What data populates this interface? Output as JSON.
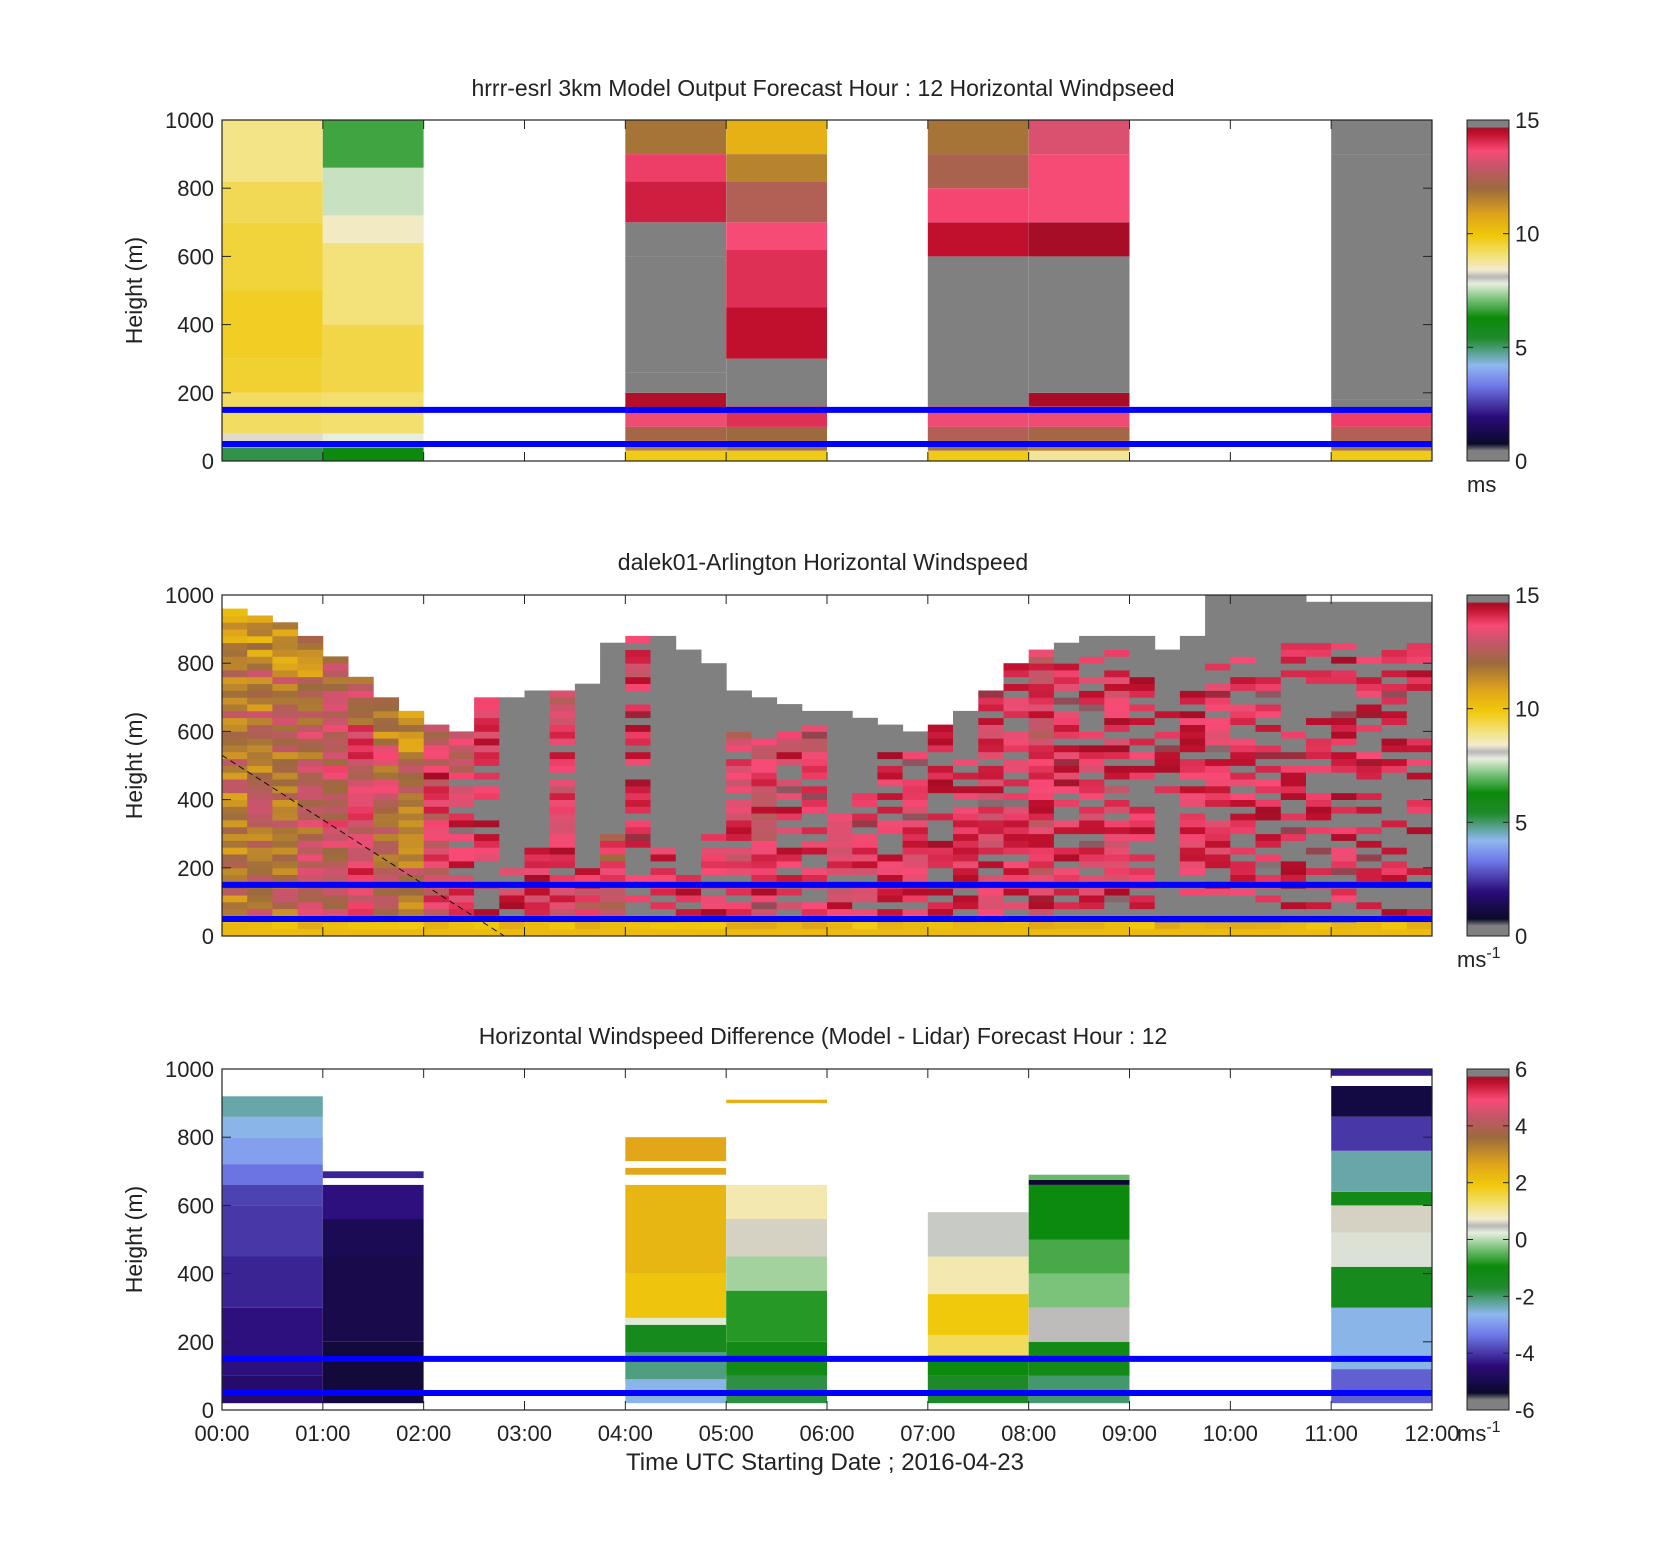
{
  "panels": [
    {
      "id": "model",
      "title": "hrrr-esrl 3km Model Output   Forecast Hour : 12 Horizontal Windpseed",
      "ylabel": "Height (m)",
      "colorbar": {
        "ticks": [
          "15",
          "10",
          "5",
          "0"
        ],
        "unit": "ms",
        "unit_sup": ""
      }
    },
    {
      "id": "lidar",
      "title": "dalek01-Arlington  Horizontal Windspeed",
      "ylabel": "Height (m)",
      "colorbar": {
        "ticks": [
          "15",
          "10",
          "5",
          "0"
        ],
        "unit": "ms",
        "unit_sup": "-1"
      }
    },
    {
      "id": "diff",
      "title": "Horizontal Windspeed Difference (Model - Lidar) Forecast Hour : 12",
      "ylabel": "Height (m)",
      "colorbar": {
        "ticks": [
          "6",
          "4",
          "2",
          "0",
          "-2",
          "-4",
          "-6"
        ],
        "unit": "ms",
        "unit_sup": "-1"
      }
    }
  ],
  "xaxis": {
    "label": "Time UTC  Starting Date ; 2016-04-23",
    "ticks": [
      "00:00",
      "01:00",
      "02:00",
      "03:00",
      "04:00",
      "05:00",
      "06:00",
      "07:00",
      "08:00",
      "09:00",
      "10:00",
      "11:00",
      "12:00"
    ]
  },
  "yaxis_ticks": [
    "1000",
    "800",
    "600",
    "400",
    "200",
    "0"
  ],
  "chart_data": [
    {
      "type": "heatmap",
      "title": "hrrr-esrl 3km Model Output   Forecast Hour : 12 Horizontal Windpseed",
      "xlabel": "",
      "ylabel": "Height (m)",
      "xlim_hours": [
        0,
        12
      ],
      "ylim": [
        0,
        1000
      ],
      "colorbar": {
        "min": 0,
        "max": 15,
        "ticks": [
          0,
          5,
          10,
          15
        ],
        "unit": "ms"
      },
      "reference_lines_m": [
        150,
        50
      ],
      "reference_line_color": "#0000ff",
      "columns": [
        {
          "start_hour": 0,
          "end_hour": 1,
          "levels": [
            [
              0,
              40,
              5.2
            ],
            [
              40,
              80,
              8.3
            ],
            [
              80,
              200,
              9.2
            ],
            [
              200,
              300,
              9.6
            ],
            [
              300,
              500,
              9.7
            ],
            [
              500,
              700,
              9.5
            ],
            [
              700,
              820,
              9.3
            ],
            [
              820,
              1000,
              8.9
            ]
          ]
        },
        {
          "start_hour": 1,
          "end_hour": 2,
          "levels": [
            [
              0,
              40,
              6.2
            ],
            [
              40,
              80,
              7.8
            ],
            [
              80,
              200,
              9.1
            ],
            [
              200,
              400,
              9.4
            ],
            [
              400,
              640,
              9.0
            ],
            [
              640,
              720,
              8.5
            ],
            [
              720,
              860,
              7.6
            ],
            [
              860,
              1000,
              6.7
            ]
          ]
        },
        {
          "start_hour": 4,
          "end_hour": 5,
          "levels": [
            [
              0,
              30,
              9.8
            ],
            [
              30,
              60,
              11.5
            ],
            [
              60,
              100,
              12.2
            ],
            [
              100,
              140,
              13.5
            ],
            [
              140,
              200,
              14.5
            ],
            [
              200,
              260,
              15.0
            ],
            [
              260,
              600,
              null
            ],
            [
              600,
              700,
              15.0
            ],
            [
              700,
              820,
              14.2
            ],
            [
              820,
              900,
              13.8
            ],
            [
              900,
              1000,
              11.8
            ]
          ]
        },
        {
          "start_hour": 5,
          "end_hour": 6,
          "levels": [
            [
              0,
              30,
              9.8
            ],
            [
              30,
              60,
              11.8
            ],
            [
              60,
              100,
              12.0
            ],
            [
              100,
              160,
              14.0
            ],
            [
              160,
              300,
              14.8
            ],
            [
              300,
              450,
              14.4
            ],
            [
              450,
              620,
              14.0
            ],
            [
              620,
              700,
              13.6
            ],
            [
              700,
              820,
              12.5
            ],
            [
              820,
              900,
              11.5
            ],
            [
              900,
              1000,
              10.5
            ]
          ]
        },
        {
          "start_hour": 7,
          "end_hour": 8,
          "levels": [
            [
              0,
              30,
              9.8
            ],
            [
              30,
              60,
              11.8
            ],
            [
              60,
              100,
              12.5
            ],
            [
              100,
              160,
              13.5
            ],
            [
              160,
              500,
              null
            ],
            [
              500,
              600,
              15.0
            ],
            [
              600,
              700,
              14.4
            ],
            [
              700,
              800,
              13.7
            ],
            [
              800,
              900,
              12.3
            ],
            [
              900,
              1000,
              11.8
            ]
          ]
        },
        {
          "start_hour": 8,
          "end_hour": 9,
          "levels": [
            [
              0,
              30,
              8.8
            ],
            [
              30,
              60,
              11.5
            ],
            [
              60,
              100,
              12.2
            ],
            [
              100,
              160,
              13.5
            ],
            [
              160,
              200,
              14.6
            ],
            [
              200,
              500,
              null
            ],
            [
              500,
              600,
              14.8
            ],
            [
              600,
              700,
              14.6
            ],
            [
              700,
              900,
              13.6
            ],
            [
              900,
              1000,
              13.2
            ]
          ]
        },
        {
          "start_hour": 11,
          "end_hour": 12,
          "levels": [
            [
              0,
              30,
              9.8
            ],
            [
              30,
              60,
              11.8
            ],
            [
              60,
              100,
              12.5
            ],
            [
              100,
              150,
              13.8
            ],
            [
              150,
              180,
              14.8
            ],
            [
              180,
              900,
              null
            ],
            [
              900,
              1000,
              14.8
            ]
          ]
        }
      ]
    },
    {
      "type": "heatmap",
      "title": "dalek01-Arlington  Horizontal Windspeed",
      "xlabel": "",
      "ylabel": "Height (m)",
      "xlim_hours": [
        0,
        12
      ],
      "ylim": [
        0,
        1000
      ],
      "colorbar": {
        "min": 0,
        "max": 15,
        "ticks": [
          0,
          5,
          10,
          15
        ],
        "unit": "ms-1"
      },
      "reference_lines_m": [
        150,
        50
      ],
      "reference_line_color": "#0000ff",
      "column_width_hours": 0.25,
      "column_tops_m": [
        960,
        940,
        920,
        880,
        820,
        760,
        700,
        660,
        620,
        600,
        690,
        700,
        710,
        720,
        740,
        860,
        880,
        870,
        830,
        800,
        720,
        700,
        680,
        660,
        650,
        640,
        620,
        600,
        620,
        660,
        720,
        800,
        830,
        860,
        880,
        880,
        870,
        840,
        870,
        1000,
        1000,
        990,
        990,
        980,
        980,
        980,
        980,
        980
      ],
      "column_values": [
        11.8,
        12.0,
        12.2,
        12.4,
        13.0,
        13.3,
        12.6,
        12.0,
        13.6,
        14.2,
        14.4,
        14.2,
        13.8,
        14.0,
        13.4,
        13.0,
        14.6,
        14.2,
        13.8,
        14.4,
        14.0,
        13.6,
        14.2,
        14.5,
        14.0,
        14.2,
        14.6,
        14.0,
        14.8,
        14.3,
        14.0,
        14.4,
        13.6,
        14.4,
        14.2,
        14.0,
        14.6,
        14.8,
        14.4,
        14.4,
        14.6,
        14.6,
        14.8,
        14.8,
        14.6,
        14.6,
        14.8,
        14.8
      ],
      "grey_region_above_m": [
        null,
        null,
        null,
        null,
        null,
        null,
        null,
        null,
        null,
        null,
        null,
        200,
        260,
        null,
        200,
        300,
        null,
        280,
        180,
        300,
        600,
        580,
        600,
        620,
        400,
        420,
        560,
        540,
        640,
        520,
        null,
        null,
        null,
        800,
        820,
        830,
        800,
        700,
        820,
        820,
        840,
        850,
        860,
        860,
        860,
        860,
        860,
        860
      ],
      "grey_region_below_m": [
        null,
        null,
        null,
        null,
        null,
        null,
        null,
        null,
        null,
        null,
        null,
        null,
        null,
        null,
        null,
        null,
        null,
        null,
        null,
        null,
        null,
        null,
        null,
        null,
        null,
        null,
        null,
        null,
        null,
        null,
        null,
        null,
        null,
        null,
        null,
        null,
        null,
        400,
        120,
        120,
        110,
        90,
        80,
        60,
        50,
        40,
        40,
        40
      ],
      "dashed_line": {
        "from": [
          0,
          530
        ],
        "to": [
          2.8,
          0
        ]
      }
    },
    {
      "type": "heatmap",
      "title": "Horizontal Windspeed Difference (Model - Lidar) Forecast Hour : 12",
      "xlabel": "Time UTC  Starting Date ; 2016-04-23",
      "ylabel": "Height (m)",
      "xlim_hours": [
        0,
        12
      ],
      "ylim": [
        0,
        1000
      ],
      "colorbar": {
        "min": -6,
        "max": 6,
        "ticks": [
          -6,
          -4,
          -2,
          0,
          2,
          4,
          6
        ],
        "unit": "ms-1"
      },
      "reference_lines_m": [
        150,
        50
      ],
      "reference_line_color": "#0000ff",
      "columns": [
        {
          "start_hour": 0,
          "end_hour": 1,
          "levels": [
            [
              20,
              100,
              -4.6
            ],
            [
              100,
              300,
              -4.4
            ],
            [
              300,
              450,
              -4.2
            ],
            [
              450,
              600,
              -4.0
            ],
            [
              600,
              660,
              -3.9
            ],
            [
              660,
              720,
              -3.4
            ],
            [
              720,
              800,
              -2.9
            ],
            [
              800,
              860,
              -2.6
            ],
            [
              860,
              920,
              -2.3
            ]
          ]
        },
        {
          "start_hour": 1,
          "end_hour": 2,
          "levels": [
            [
              20,
              200,
              -5.2
            ],
            [
              200,
              450,
              -5.0
            ],
            [
              450,
              560,
              -4.9
            ],
            [
              560,
              660,
              -4.4
            ],
            [
              680,
              700,
              -4.2
            ]
          ]
        },
        {
          "start_hour": 4,
          "end_hour": 5,
          "levels": [
            [
              20,
              90,
              -2.6
            ],
            [
              90,
              170,
              -2.1
            ],
            [
              170,
              250,
              -1.4
            ],
            [
              250,
              270,
              0.2
            ],
            [
              270,
              400,
              2.0
            ],
            [
              400,
              660,
              2.3
            ],
            [
              690,
              710,
              2.6
            ],
            [
              730,
              800,
              2.6
            ]
          ]
        },
        {
          "start_hour": 5,
          "end_hour": 6,
          "levels": [
            [
              20,
              100,
              -1.8
            ],
            [
              100,
              200,
              -1.2
            ],
            [
              200,
              350,
              -0.8
            ],
            [
              350,
              450,
              -0.1
            ],
            [
              450,
              560,
              0.6
            ],
            [
              560,
              660,
              0.9
            ],
            [
              900,
              910,
              2.4
            ]
          ]
        },
        {
          "start_hour": 7,
          "end_hour": 8,
          "levels": [
            [
              20,
              100,
              -1.6
            ],
            [
              100,
              160,
              -1.0
            ],
            [
              160,
              220,
              1.4
            ],
            [
              220,
              340,
              1.9
            ],
            [
              340,
              450,
              0.9
            ],
            [
              450,
              580,
              0.4
            ]
          ]
        },
        {
          "start_hour": 8,
          "end_hour": 9,
          "levels": [
            [
              20,
              100,
              -2.0
            ],
            [
              100,
              200,
              -1.2
            ],
            [
              200,
              300,
              0.5
            ],
            [
              300,
              400,
              -0.3
            ],
            [
              400,
              500,
              -0.6
            ],
            [
              500,
              660,
              -1.0
            ],
            [
              660,
              675,
              -5.4
            ],
            [
              675,
              690,
              -0.4
            ]
          ]
        },
        {
          "start_hour": 11,
          "end_hour": 12,
          "levels": [
            [
              20,
              120,
              -3.6
            ],
            [
              120,
              300,
              -2.6
            ],
            [
              300,
              420,
              -1.4
            ],
            [
              420,
              520,
              0.3
            ],
            [
              520,
              600,
              0.6
            ],
            [
              600,
              640,
              -1.2
            ],
            [
              640,
              760,
              -2.3
            ],
            [
              760,
              860,
              -4.0
            ],
            [
              860,
              950,
              -5.1
            ],
            [
              980,
              1000,
              -4.3
            ]
          ]
        }
      ]
    }
  ]
}
